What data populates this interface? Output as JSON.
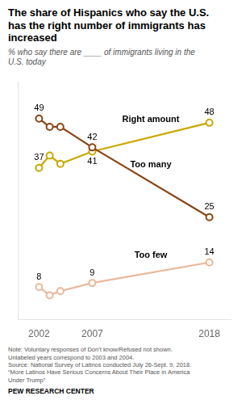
{
  "chart_data": {
    "type": "line",
    "title": "The share of Hispanics who say the U.S.\nhas the right number of immigrants has\nincreased",
    "subtitle": "% who say there are ____ of immigrants living in the\nU.S. today",
    "note": "Note: Voluntary responses of Don’t know/Refused not shown.\nUnlabeled years correspond to 2003 and 2004.\nSource: National Survey of Latinos conducted July 26-Sept. 9, 2018.\n“More Latinos Have Serious Concerns About Their Place in America\nUnder Trump”",
    "source": "PEW RESEARCH CENTER",
    "x": [
      2002,
      2003,
      2004,
      2007,
      2018
    ],
    "series": [
      {
        "name": "Too many",
        "color": "#8B4513",
        "values": [
          49,
          47,
          47,
          42,
          25
        ]
      },
      {
        "name": "Right amount",
        "color": "#C9A800",
        "values": [
          37,
          40,
          38,
          41,
          48
        ]
      },
      {
        "name": "Too few",
        "color": "#E8B89A",
        "values": [
          8,
          6,
          7,
          9,
          14
        ]
      }
    ],
    "xlim": [
      2000,
      2020
    ],
    "xticks": [
      2002,
      2007,
      2018
    ],
    "ylim": [
      0,
      58
    ],
    "yticks": [],
    "tick_labels": "x",
    "grid": false,
    "marker": "circle",
    "annotations": [
      {
        "text": "49",
        "x": 2002,
        "y": 49
      },
      {
        "text": "42",
        "x": 2007,
        "y": 42
      },
      {
        "text": "25",
        "x": 2018,
        "y": 25
      },
      {
        "text": "37",
        "x": 2002,
        "y": 37
      },
      {
        "text": "41",
        "x": 2007,
        "y": 41
      },
      {
        "text": "48",
        "x": 2018,
        "y": 48
      },
      {
        "text": "8",
        "x": 2002,
        "y": 8
      },
      {
        "text": "9",
        "x": 2007,
        "y": 9
      },
      {
        "text": "14",
        "x": 2018,
        "y": 14
      }
    ]
  }
}
